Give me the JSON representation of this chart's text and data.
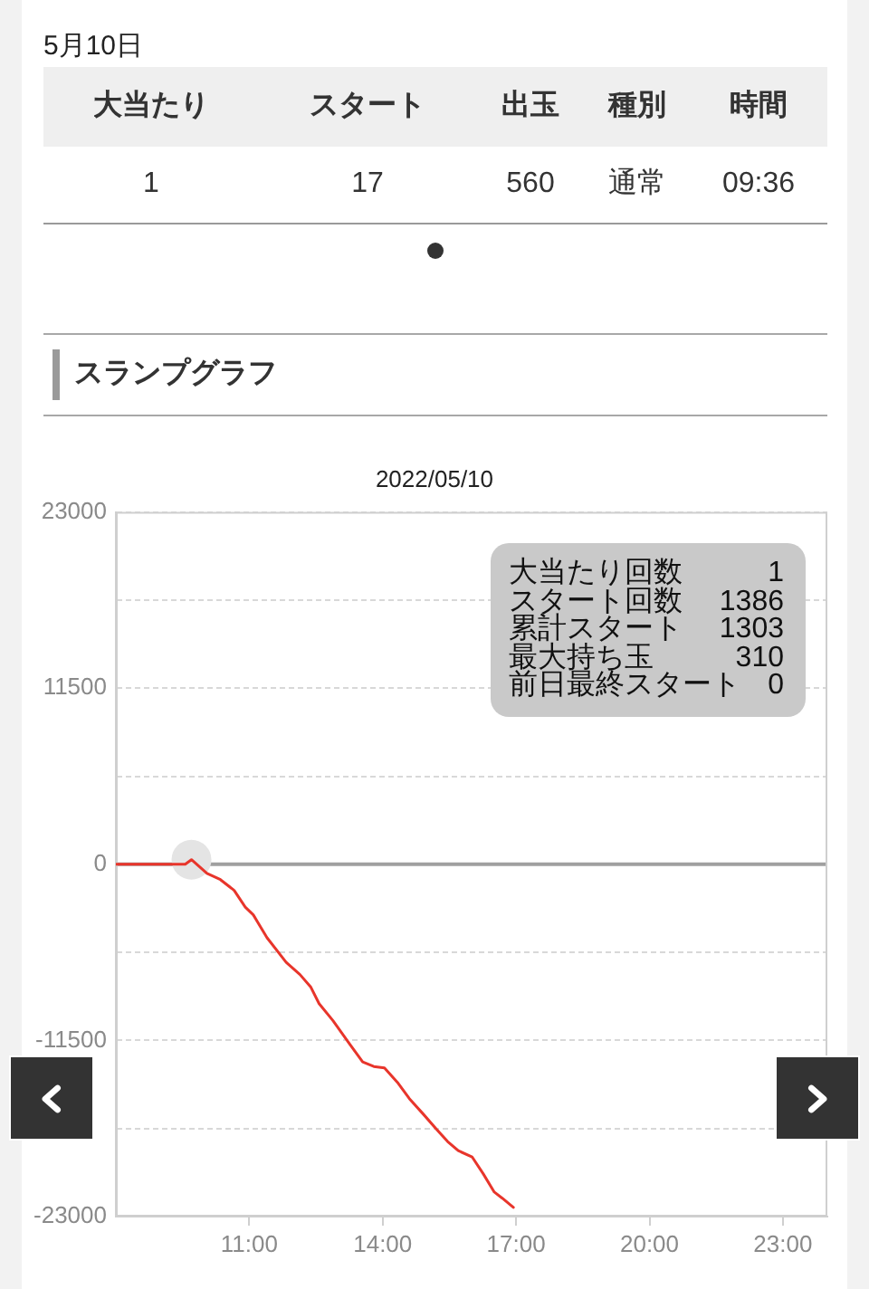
{
  "chart_data": [
    {
      "type": "other",
      "title": "5月10日",
      "categories": [
        "大当たり",
        "スタート",
        "出玉",
        "種別",
        "時間"
      ],
      "value_labels": [
        "1",
        "17",
        "560",
        "通常",
        "09:36"
      ]
    },
    {
      "type": "line",
      "title": "スランプグラフ",
      "subtitle": "2022/05/10",
      "x": [
        8,
        9.56,
        9.7,
        10.05,
        10.35,
        10.66,
        10.91,
        11.09,
        11.4,
        11.83,
        12.14,
        12.38,
        12.57,
        12.88,
        13.25,
        13.55,
        13.8,
        14.04,
        14.35,
        14.6,
        14.91,
        15.21,
        15.46,
        15.7,
        16.01,
        16.26,
        16.51,
        16.69,
        16.94
      ],
      "series": [
        {
          "color": "#e8352b",
          "values": [
            0,
            0,
            300,
            -600,
            -1000,
            -1700,
            -2800,
            -3300,
            -4800,
            -6400,
            -7200,
            -8000,
            -9100,
            -10200,
            -11700,
            -12900,
            -13200,
            -13300,
            -14300,
            -15300,
            -16300,
            -17300,
            -18100,
            -18700,
            -19100,
            -20200,
            -21400,
            -21800,
            -22400
          ]
        },
        {
          "type": "scatter",
          "x": [
            9.7
          ],
          "color": "#e4e4e4",
          "values": [
            300
          ]
        }
      ],
      "xlim": [
        8,
        24
      ],
      "xticks": [
        {
          "value": 11,
          "label": "11:00"
        },
        {
          "value": 14,
          "label": "14:00"
        },
        {
          "value": 17,
          "label": "17:00"
        },
        {
          "value": 20,
          "label": "20:00"
        },
        {
          "value": 23,
          "label": "23:00"
        }
      ],
      "ylim": [
        -23000,
        23000
      ],
      "yticks": [
        -23000,
        {
          "value": -17250,
          "label": null
        },
        -11500,
        {
          "value": -5750,
          "label": null
        },
        0,
        {
          "value": 5750,
          "label": null
        },
        11500,
        {
          "value": 17250,
          "label": null
        },
        23000
      ],
      "grid": "y",
      "ref_lines": [
        {
          "axis": "y",
          "value": 0,
          "color": "#a0a0a0"
        }
      ],
      "annotations": [
        "大当たり回数",
        "1",
        "スタート回数",
        "1386",
        "累計スタート",
        "1303",
        "最大持ち玉",
        "310",
        "前日最終スタート",
        "0"
      ]
    }
  ]
}
